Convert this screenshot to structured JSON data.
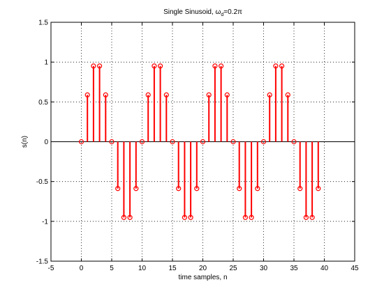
{
  "chart_data": {
    "type": "stem",
    "title_main": "Single Sinusoid,  ω",
    "title_sub": "d",
    "title_tail": "=0.2π",
    "xlabel": "time samples, n",
    "ylabel": "s(n)",
    "xlim": [
      -5,
      45
    ],
    "ylim": [
      -1.5,
      1.5
    ],
    "xticks": [
      -5,
      0,
      5,
      10,
      15,
      20,
      25,
      30,
      35,
      40,
      45
    ],
    "yticks": [
      -1.5,
      -1,
      -0.5,
      0,
      0.5,
      1,
      1.5
    ],
    "grid": true,
    "color": "#ff0000",
    "x": [
      0,
      1,
      2,
      3,
      4,
      5,
      6,
      7,
      8,
      9,
      10,
      11,
      12,
      13,
      14,
      15,
      16,
      17,
      18,
      19,
      20,
      21,
      22,
      23,
      24,
      25,
      26,
      27,
      28,
      29,
      30,
      31,
      32,
      33,
      34,
      35,
      36,
      37,
      38,
      39
    ],
    "y": [
      0,
      0.588,
      0.951,
      0.951,
      0.588,
      0,
      -0.588,
      -0.951,
      -0.951,
      -0.588,
      0,
      0.588,
      0.951,
      0.951,
      0.588,
      0,
      -0.588,
      -0.951,
      -0.951,
      -0.588,
      0,
      0.588,
      0.951,
      0.951,
      0.588,
      0,
      -0.588,
      -0.951,
      -0.951,
      -0.588,
      0,
      0.588,
      0.951,
      0.951,
      0.588,
      0,
      -0.588,
      -0.951,
      -0.951,
      -0.588
    ]
  }
}
